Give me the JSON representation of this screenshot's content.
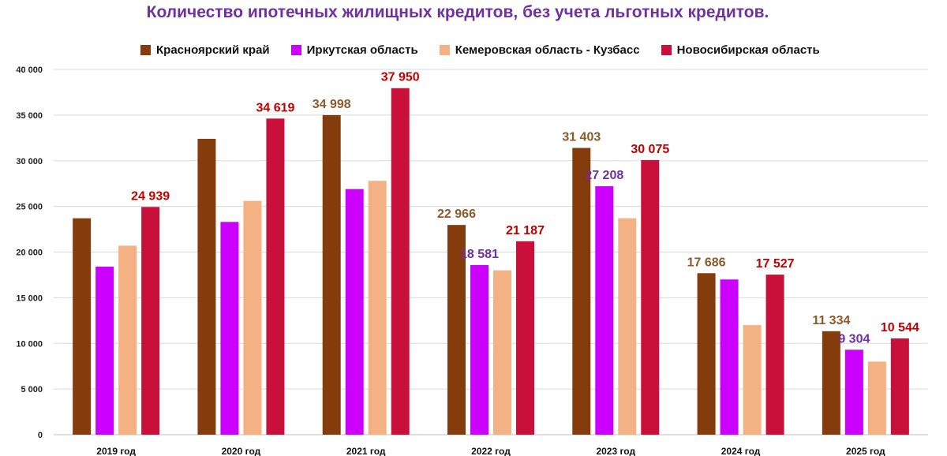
{
  "chart_data": {
    "type": "bar",
    "title": "Количество ипотечных жилищных кредитов, без учета льготных кредитов.",
    "xlabel": "",
    "ylabel": "",
    "ylim": [
      0,
      40000
    ],
    "yticks": [
      0,
      5000,
      10000,
      15000,
      20000,
      25000,
      30000,
      35000,
      40000
    ],
    "ytick_labels": [
      "0",
      "5 000",
      "10 000",
      "15 000",
      "20 000",
      "25 000",
      "30 000",
      "35 000",
      "40 000"
    ],
    "grid": true,
    "legend_position": "top",
    "categories": [
      "2019 год",
      "2020 год",
      "2021 год",
      "2022 год",
      "2023 год",
      "2024 год",
      "2025 год"
    ],
    "series": [
      {
        "name": "Красноярский край",
        "color": "#843c0c",
        "label_color": "#8b5a2b",
        "values": [
          23700,
          32400,
          34998,
          22966,
          31403,
          17686,
          11334
        ],
        "labels": [
          "",
          "",
          "34 998",
          "22 966",
          "31 403",
          "17 686",
          "11 334"
        ]
      },
      {
        "name": "Иркутская область",
        "color": "#cc00ff",
        "label_color": "#7030a0",
        "values": [
          18400,
          23300,
          26900,
          18581,
          27208,
          17000,
          9304
        ],
        "labels": [
          "",
          "",
          "",
          "18 581",
          "27 208",
          "",
          "9 304"
        ]
      },
      {
        "name": "Кемеровская область - Кузбасс",
        "color": "#f4b183",
        "label_color": "#c55a11",
        "values": [
          20700,
          25600,
          27800,
          18000,
          23700,
          12000,
          8000
        ],
        "labels": [
          "",
          "",
          "",
          "",
          "",
          "",
          ""
        ]
      },
      {
        "name": "Новосибирская область",
        "color": "#c8103a",
        "label_color": "#c00000",
        "values": [
          24939,
          34619,
          37950,
          21187,
          30075,
          17527,
          10544
        ],
        "labels": [
          "24 939",
          "34 619",
          "37 950",
          "21 187",
          "30 075",
          "17 527",
          "10 544"
        ]
      }
    ]
  }
}
